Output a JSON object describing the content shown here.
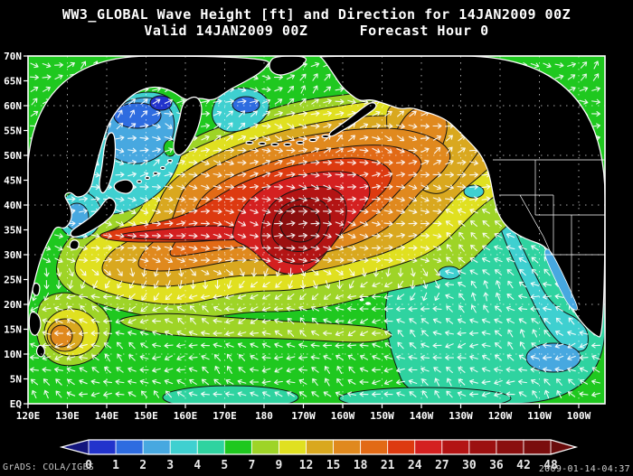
{
  "header": {
    "title_line1": "WW3_GLOBAL Wave Height [ft] and Direction for 14JAN2009 00Z",
    "title_line2": "Valid 14JAN2009 00Z      Forecast Hour 0"
  },
  "footer": {
    "credit": "GrADS: COLA/IGES",
    "timestamp": "2009-01-14-04:37"
  },
  "axes": {
    "lat_labels": [
      "70N",
      "65N",
      "60N",
      "55N",
      "50N",
      "45N",
      "40N",
      "35N",
      "30N",
      "25N",
      "20N",
      "15N",
      "10N",
      "5N",
      "EQ"
    ],
    "lon_labels": [
      "120E",
      "130E",
      "140E",
      "150E",
      "160E",
      "170E",
      "180",
      "170W",
      "160W",
      "150W",
      "140W",
      "130W",
      "120W",
      "110W",
      "100W"
    ]
  },
  "colorbar": {
    "levels": [
      "0",
      "1",
      "2",
      "3",
      "4",
      "5",
      "7",
      "9",
      "12",
      "15",
      "18",
      "21",
      "24",
      "27",
      "30",
      "36",
      "42",
      "48"
    ],
    "colors": [
      "#14167e",
      "#2233cc",
      "#2e6ce0",
      "#47a8e0",
      "#3fd0d0",
      "#2fd3a0",
      "#1fc81f",
      "#9ed427",
      "#e0e020",
      "#d9a81f",
      "#e0891e",
      "#e26a16",
      "#dd3a10",
      "#d42020",
      "#b31414",
      "#9c1010",
      "#8a0e0e",
      "#7a0d0d",
      "#6a0c0c"
    ]
  },
  "chart_data": {
    "type": "heatmap",
    "title": "WW3_GLOBAL Wave Height [ft] and Direction for 14JAN2009 00Z",
    "subtitle": "Valid 14JAN2009 00Z  Forecast Hour 0",
    "units": "ft",
    "x": [
      "120E",
      "130E",
      "140E",
      "150E",
      "160E",
      "170E",
      "180",
      "170W",
      "160W",
      "150W",
      "140W",
      "130W",
      "120W",
      "110W",
      "100W"
    ],
    "y": [
      "70N",
      "65N",
      "60N",
      "55N",
      "50N",
      "45N",
      "40N",
      "35N",
      "30N",
      "25N",
      "20N",
      "15N",
      "10N",
      "5N",
      "EQ"
    ],
    "values": [
      [
        null,
        null,
        null,
        null,
        null,
        null,
        null,
        null,
        null,
        null,
        null,
        null,
        null,
        null,
        null
      ],
      [
        null,
        null,
        null,
        null,
        null,
        null,
        4,
        4,
        5,
        null,
        null,
        null,
        null,
        null,
        null
      ],
      [
        null,
        null,
        2,
        2,
        3,
        5,
        7,
        7,
        6,
        null,
        null,
        null,
        null,
        null,
        null
      ],
      [
        null,
        null,
        3,
        3,
        4,
        9,
        12,
        12,
        12,
        15,
        null,
        null,
        null,
        null,
        null
      ],
      [
        null,
        null,
        4,
        9,
        12,
        15,
        18,
        15,
        12,
        15,
        15,
        9,
        null,
        null,
        null
      ],
      [
        null,
        null,
        9,
        12,
        15,
        18,
        18,
        18,
        15,
        12,
        15,
        12,
        7,
        null,
        null
      ],
      [
        null,
        5,
        9,
        15,
        18,
        24,
        27,
        21,
        18,
        15,
        12,
        9,
        5,
        null,
        null
      ],
      [
        null,
        4,
        7,
        12,
        21,
        30,
        27,
        24,
        18,
        12,
        9,
        5,
        4,
        null,
        null
      ],
      [
        null,
        4,
        5,
        9,
        15,
        18,
        15,
        12,
        12,
        9,
        7,
        5,
        4,
        3,
        null
      ],
      [
        null,
        5,
        5,
        7,
        9,
        12,
        12,
        9,
        9,
        7,
        5,
        5,
        4,
        3,
        null
      ],
      [
        5,
        12,
        7,
        7,
        9,
        9,
        9,
        7,
        7,
        5,
        5,
        5,
        4,
        4,
        null
      ],
      [
        5,
        15,
        7,
        5,
        7,
        7,
        7,
        7,
        5,
        5,
        5,
        4,
        4,
        4,
        4
      ],
      [
        4,
        7,
        5,
        4,
        5,
        5,
        5,
        5,
        5,
        4,
        4,
        4,
        4,
        4,
        4
      ],
      [
        3,
        4,
        4,
        4,
        4,
        5,
        5,
        5,
        4,
        4,
        4,
        4,
        4,
        4,
        4
      ],
      [
        2,
        3,
        4,
        4,
        4,
        4,
        4,
        4,
        4,
        4,
        4,
        4,
        3,
        3,
        3
      ]
    ],
    "contour_levels": [
      0,
      1,
      2,
      3,
      4,
      5,
      7,
      9,
      12,
      15,
      18,
      21,
      24,
      27,
      30,
      36,
      42,
      48
    ],
    "legend_position": "bottom",
    "overlay": "wave direction arrows",
    "grid": "dotted 10-degree graticule"
  }
}
